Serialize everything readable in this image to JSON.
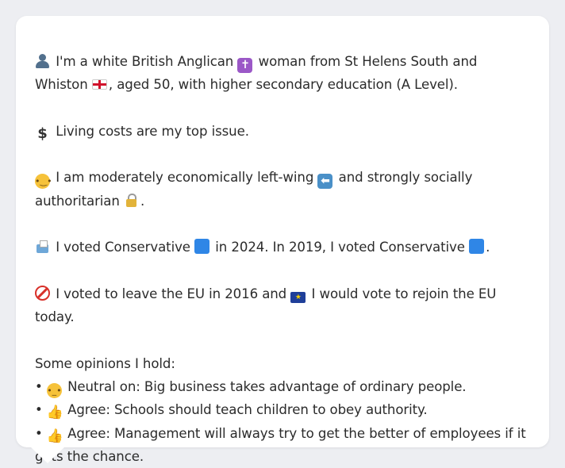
{
  "card": {
    "intro": {
      "icon": "person-silhouette-icon",
      "text_a": "I'm a white British Anglican",
      "icon_b": "latin-cross-icon",
      "text_b": "woman from St Helens South and Whiston",
      "icon_c": "england-flag-icon",
      "text_c": ", aged 50, with higher secondary education (A Level)."
    },
    "issue": {
      "icon": "dollar-sign-icon",
      "text": "Living costs are my top issue."
    },
    "ideology": {
      "icon": "thinking-face-icon",
      "text_a": "I am moderately economically left-wing",
      "icon_b": "left-arrow-icon",
      "text_b": "and strongly socially authoritarian",
      "icon_c": "lock-icon",
      "text_c": "."
    },
    "votes": {
      "icon": "ballot-box-icon",
      "text_a": "I voted Conservative",
      "text_b": "in 2024. In 2019, I voted Conservative",
      "text_c": ".",
      "party_color": "#2f86e6"
    },
    "brexit": {
      "icon": "prohibited-icon",
      "text_a": "I voted to leave the EU in 2016 and",
      "icon_b": "eu-flag-icon",
      "text_b": "I would vote to rejoin the EU today."
    },
    "opinions": {
      "heading": "Some opinions I hold:",
      "items": [
        {
          "bullet": "•",
          "icon": "neutral-face-icon",
          "text": "Neutral on: Big business takes advantage of ordinary people."
        },
        {
          "bullet": "•",
          "icon": "thumbs-up-icon",
          "text": "Agree: Schools should teach children to obey authority."
        },
        {
          "bullet": "•",
          "icon": "thumbs-up-icon",
          "text": "Agree: Management will always try to get the better of employees if it gets the chance."
        }
      ]
    }
  }
}
